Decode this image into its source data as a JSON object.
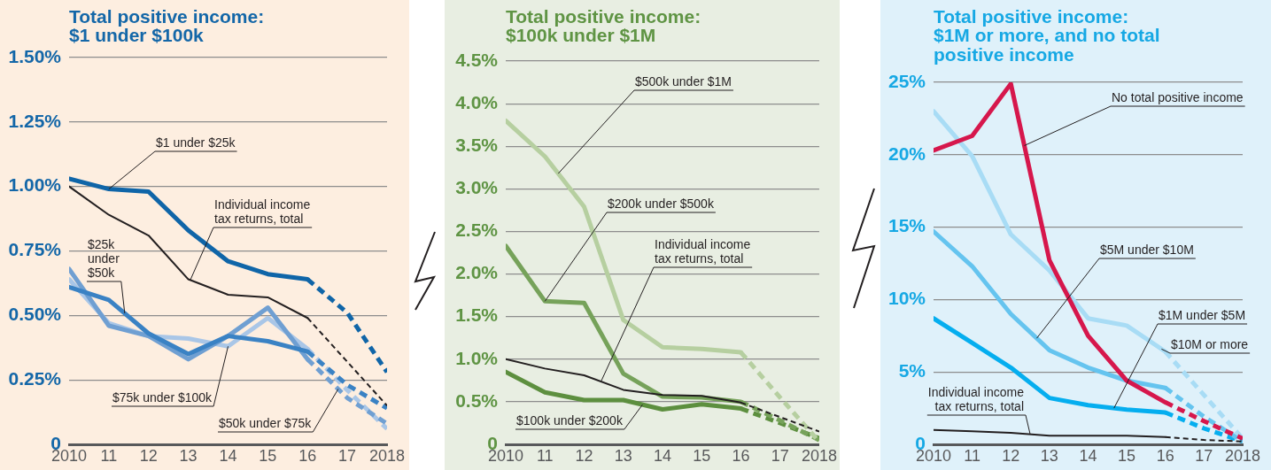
{
  "chart_data": [
    {
      "type": "line",
      "title": "Total positive income:\n$1 under $100k",
      "x": [
        2010,
        2011,
        2012,
        2013,
        2014,
        2015,
        2016
      ],
      "series": [
        {
          "name": "$1 under $25k",
          "color": "#0f65a8",
          "values": [
            1.03,
            0.99,
            0.98,
            0.83,
            0.71,
            0.66,
            0.64
          ]
        },
        {
          "color": "#0f65a8",
          "line_style": "dashed",
          "x": [
            2016,
            2017,
            2018
          ],
          "values": [
            0.64,
            0.51,
            0.28
          ]
        },
        {
          "name": "$25k under $50k",
          "color": "#3a82c4",
          "values": [
            0.61,
            0.56,
            0.43,
            0.35,
            0.42,
            0.4,
            0.36
          ]
        },
        {
          "color": "#3a82c4",
          "line_style": "dashed",
          "x": [
            2016,
            2017,
            2018
          ],
          "values": [
            0.36,
            0.23,
            0.14
          ]
        },
        {
          "name": "$50k under $75k",
          "color": "#6f9fd2",
          "values": [
            0.68,
            0.46,
            0.42,
            0.33,
            0.42,
            0.53,
            0.33
          ]
        },
        {
          "color": "#6f9fd2",
          "line_style": "dashed",
          "x": [
            2016,
            2017,
            2018
          ],
          "values": [
            0.33,
            0.18,
            0.08
          ]
        },
        {
          "name": "$75k under $100k",
          "color": "#a9c6e7",
          "values": [
            0.64,
            0.47,
            0.42,
            0.41,
            0.38,
            0.49,
            0.37
          ]
        },
        {
          "color": "#a9c6e7",
          "line_style": "dashed",
          "x": [
            2016,
            2017,
            2018
          ],
          "values": [
            0.37,
            0.21,
            0.06
          ]
        },
        {
          "name": "Individual income tax returns, total",
          "color": "#231f20",
          "values": [
            1.0,
            0.89,
            0.81,
            0.64,
            0.58,
            0.57,
            0.49
          ]
        },
        {
          "color": "#231f20",
          "line_style": "dashed",
          "x": [
            2016,
            2017,
            2018
          ],
          "values": [
            0.49,
            0.32,
            0.15
          ]
        }
      ],
      "xlim": [
        2010,
        2018
      ],
      "xticks": [
        {
          "value": 2010,
          "label": "2010"
        },
        {
          "value": 2011,
          "label": "11"
        },
        {
          "value": 2012,
          "label": "12"
        },
        {
          "value": 2013,
          "label": "13"
        },
        {
          "value": 2014,
          "label": "14"
        },
        {
          "value": 2015,
          "label": "15"
        },
        {
          "value": 2016,
          "label": "16"
        },
        {
          "value": 2017,
          "label": "17"
        },
        {
          "value": 2018,
          "label": "2018"
        }
      ],
      "ylim": [
        0,
        1.5
      ],
      "yticks": [
        {
          "value": 0,
          "label": "0"
        },
        {
          "value": 0.25,
          "label": "0.25%"
        },
        {
          "value": 0.5,
          "label": "0.50%"
        },
        {
          "value": 0.75,
          "label": "0.75%"
        },
        {
          "value": 1,
          "label": "1.00%"
        },
        {
          "value": 1.25,
          "label": "1.25%"
        },
        {
          "value": 1.5,
          "label": "1.50%"
        }
      ],
      "grid": "y"
    },
    {
      "type": "line",
      "title": "Total positive income:\n$100k under $1M",
      "x": [
        2010,
        2011,
        2012,
        2013,
        2014,
        2015,
        2016
      ],
      "series": [
        {
          "name": "$500k under $1M",
          "color": "#b6cfa0",
          "values": [
            3.8,
            3.38,
            2.79,
            1.46,
            1.14,
            1.12,
            1.08
          ]
        },
        {
          "color": "#b6cfa0",
          "line_style": "dashed",
          "x": [
            2016,
            2017,
            2018
          ],
          "values": [
            1.08,
            0.55,
            0.03
          ]
        },
        {
          "name": "$200k under $500k",
          "color": "#76a25a",
          "values": [
            2.33,
            1.68,
            1.66,
            0.83,
            0.56,
            0.55,
            0.5
          ]
        },
        {
          "color": "#76a25a",
          "line_style": "dashed",
          "x": [
            2016,
            2017,
            2018
          ],
          "values": [
            0.5,
            0.28,
            0.05
          ]
        },
        {
          "name": "$100k under $200k",
          "color": "#5d8f3f",
          "values": [
            0.85,
            0.61,
            0.52,
            0.52,
            0.41,
            0.47,
            0.42
          ]
        },
        {
          "color": "#5d8f3f",
          "line_style": "dashed",
          "x": [
            2016,
            2017,
            2018
          ],
          "values": [
            0.42,
            0.25,
            0.07
          ]
        },
        {
          "name": "Individual income tax returns, total",
          "color": "#231f20",
          "values": [
            1.0,
            0.89,
            0.81,
            0.64,
            0.58,
            0.57,
            0.49
          ]
        },
        {
          "color": "#231f20",
          "line_style": "dashed",
          "x": [
            2016,
            2017,
            2018
          ],
          "values": [
            0.49,
            0.32,
            0.15
          ]
        }
      ],
      "xlim": [
        2010,
        2018
      ],
      "xticks": [
        {
          "value": 2010,
          "label": "2010"
        },
        {
          "value": 2011,
          "label": "11"
        },
        {
          "value": 2012,
          "label": "12"
        },
        {
          "value": 2013,
          "label": "13"
        },
        {
          "value": 2014,
          "label": "14"
        },
        {
          "value": 2015,
          "label": "15"
        },
        {
          "value": 2016,
          "label": "16"
        },
        {
          "value": 2017,
          "label": "17"
        },
        {
          "value": 2018,
          "label": "2018"
        }
      ],
      "ylim": [
        0,
        4.5
      ],
      "yticks": [
        {
          "value": 0,
          "label": "0"
        },
        {
          "value": 0.5,
          "label": "0.5%"
        },
        {
          "value": 1,
          "label": "1.0%"
        },
        {
          "value": 1.5,
          "label": "1.5%"
        },
        {
          "value": 2,
          "label": "2.0%"
        },
        {
          "value": 2.5,
          "label": "2.5%"
        },
        {
          "value": 3,
          "label": "3.0%"
        },
        {
          "value": 3.5,
          "label": "3.5%"
        },
        {
          "value": 4,
          "label": "4.0%"
        },
        {
          "value": 4.5,
          "label": "4.5%"
        }
      ],
      "grid": "y"
    },
    {
      "type": "line",
      "title": "Total positive income:\n$1M or more, and no total\npositive income",
      "x": [
        2010,
        2011,
        2012,
        2013,
        2014,
        2015,
        2016
      ],
      "series": [
        {
          "name": "No total positive income",
          "color": "#d6174c",
          "values": [
            20.3,
            21.3,
            24.9,
            12.7,
            7.5,
            4.4,
            2.9
          ]
        },
        {
          "color": "#d6174c",
          "line_style": "dashed",
          "x": [
            2016,
            2017,
            2018
          ],
          "values": [
            2.9,
            1.6,
            0.4
          ]
        },
        {
          "name": "$10M or more",
          "color": "#a8dcf5",
          "values": [
            23.0,
            19.9,
            14.5,
            12.0,
            8.7,
            8.2,
            6.4
          ]
        },
        {
          "color": "#a8dcf5",
          "line_style": "dashed",
          "x": [
            2016,
            2017,
            2018
          ],
          "values": [
            6.4,
            3.4,
            0.4
          ]
        },
        {
          "name": "$5M under $10M",
          "color": "#65c4ef",
          "values": [
            14.7,
            12.3,
            9.0,
            6.5,
            5.3,
            4.4,
            3.9
          ]
        },
        {
          "color": "#65c4ef",
          "line_style": "dashed",
          "x": [
            2016,
            2017,
            2018
          ],
          "values": [
            3.9,
            1.9,
            0.2
          ]
        },
        {
          "name": "$1M under $5M",
          "color": "#05aeef",
          "values": [
            8.7,
            7.0,
            5.3,
            3.2,
            2.7,
            2.4,
            2.2
          ]
        },
        {
          "color": "#05aeef",
          "line_style": "dashed",
          "x": [
            2016,
            2017,
            2018
          ],
          "values": [
            2.2,
            1.1,
            0.2
          ]
        },
        {
          "name": "Individual income tax returns, total",
          "color": "#231f20",
          "values": [
            1.0,
            0.9,
            0.8,
            0.6,
            0.6,
            0.6,
            0.5
          ]
        },
        {
          "color": "#231f20",
          "line_style": "dashed",
          "x": [
            2016,
            2017,
            2018
          ],
          "values": [
            0.5,
            0.3,
            0.2
          ]
        }
      ],
      "xlim": [
        2010,
        2018
      ],
      "xticks": [
        {
          "value": 2010,
          "label": "2010"
        },
        {
          "value": 2011,
          "label": "11"
        },
        {
          "value": 2012,
          "label": "12"
        },
        {
          "value": 2013,
          "label": "13"
        },
        {
          "value": 2014,
          "label": "14"
        },
        {
          "value": 2015,
          "label": "15"
        },
        {
          "value": 2016,
          "label": "16"
        },
        {
          "value": 2017,
          "label": "17"
        },
        {
          "value": 2018,
          "label": "2018"
        }
      ],
      "ylim": [
        0,
        25
      ],
      "yticks": [
        {
          "value": 0,
          "label": "0"
        },
        {
          "value": 5,
          "label": "5%"
        },
        {
          "value": 10,
          "label": "10%"
        },
        {
          "value": 15,
          "label": "15%"
        },
        {
          "value": 20,
          "label": "20%"
        },
        {
          "value": 25,
          "label": "25%"
        }
      ],
      "grid": "y"
    }
  ]
}
